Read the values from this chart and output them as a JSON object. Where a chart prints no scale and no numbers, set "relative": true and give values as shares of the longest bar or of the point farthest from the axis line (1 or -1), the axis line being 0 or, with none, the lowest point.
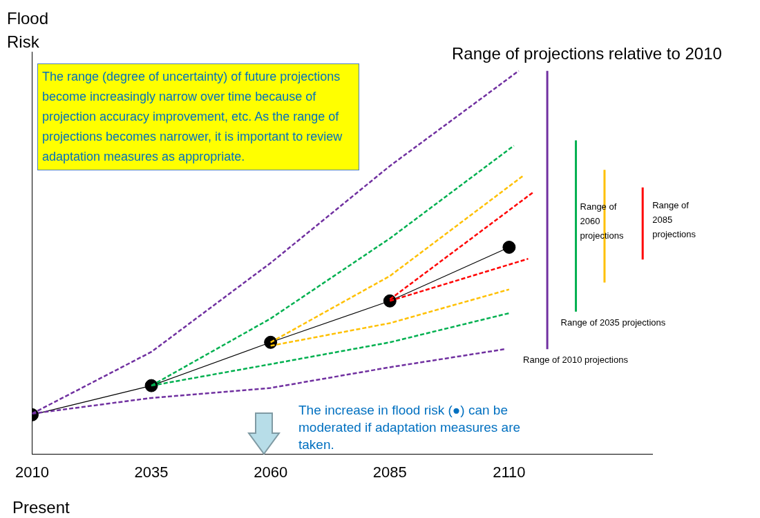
{
  "chart_data": {
    "type": "line",
    "title": "Range of projections relative to 2010",
    "ylabel": "Flood Risk",
    "xlabel": "Present",
    "relative": true,
    "xlim": [
      2010,
      2140
    ],
    "xticks": [
      2010,
      2035,
      2060,
      2085,
      2110
    ],
    "tick_labels": "x",
    "legend": "right",
    "annotations": [
      "The range (degree of uncertainty) of future projections become increasingly narrow over time because of projection accuracy improvement, etc. As the range of projections becomes narrower, it is important to review adaptation measures as appropriate.",
      "The increase in flood risk (●) can be moderated if adaptation measures are taken."
    ],
    "series": [
      {
        "x": [
          2010,
          2035,
          2060,
          2085,
          2112
        ],
        "values": [
          0.106,
          0.267,
          0.499,
          0.752,
          1
        ],
        "color": "#7030a0",
        "line_style": "dashed",
        "marker": "none"
      },
      {
        "x": [
          2010,
          2035,
          2060,
          2085,
          2109
        ],
        "values": [
          0.106,
          0.147,
          0.173,
          0.227,
          0.274
        ],
        "color": "#7030a0",
        "line_style": "dashed",
        "marker": "none"
      },
      {
        "x": [
          2035,
          2060,
          2085,
          2111
        ],
        "values": [
          0.179,
          0.354,
          0.563,
          0.805
        ],
        "color": "#00b050",
        "line_style": "dashed",
        "marker": "none"
      },
      {
        "x": [
          2035,
          2060,
          2085,
          2110
        ],
        "values": [
          0.179,
          0.235,
          0.292,
          0.368
        ],
        "color": "#00b050",
        "line_style": "dashed",
        "marker": "none"
      },
      {
        "x": [
          2060,
          2085,
          2113
        ],
        "values": [
          0.292,
          0.465,
          0.727
        ],
        "color": "#ffc000",
        "line_style": "dashed",
        "marker": "none"
      },
      {
        "x": [
          2060,
          2085,
          2110
        ],
        "values": [
          0.283,
          0.342,
          0.43
        ],
        "color": "#ffc000",
        "line_style": "dashed",
        "marker": "none"
      },
      {
        "x": [
          2085,
          2115
        ],
        "values": [
          0.404,
          0.683
        ],
        "color": "#ff0000",
        "line_style": "dashed",
        "marker": "none"
      },
      {
        "x": [
          2085,
          2114
        ],
        "values": [
          0.4,
          0.51
        ],
        "color": "#ff0000",
        "line_style": "dashed",
        "marker": "none"
      },
      {
        "x": [
          2010,
          2035,
          2060,
          2085,
          2110
        ],
        "values": [
          0.103,
          0.179,
          0.292,
          0.4,
          0.54
        ],
        "color": "#000000",
        "line_style": "solid",
        "marker": "circle"
      },
      {
        "name": "Range of 2010 projections",
        "x": [
          2118,
          2118
        ],
        "values": [
          0.274,
          1
        ],
        "color": "#7030a0",
        "line_style": "solid",
        "marker": "none"
      },
      {
        "name": "Range of 2035 projections",
        "x": [
          2124,
          2124
        ],
        "values": [
          0.372,
          0.819
        ],
        "color": "#00b050",
        "line_style": "solid",
        "marker": "none"
      },
      {
        "name": "Range of 2060 projections",
        "x": [
          2130,
          2130
        ],
        "values": [
          0.448,
          0.742
        ],
        "color": "#ffc000",
        "line_style": "solid",
        "marker": "none"
      },
      {
        "name": "Range of 2085 projections",
        "x": [
          2138,
          2138
        ],
        "values": [
          0.508,
          0.696
        ],
        "color": "#ff0000",
        "line_style": "solid",
        "marker": "none"
      }
    ]
  }
}
